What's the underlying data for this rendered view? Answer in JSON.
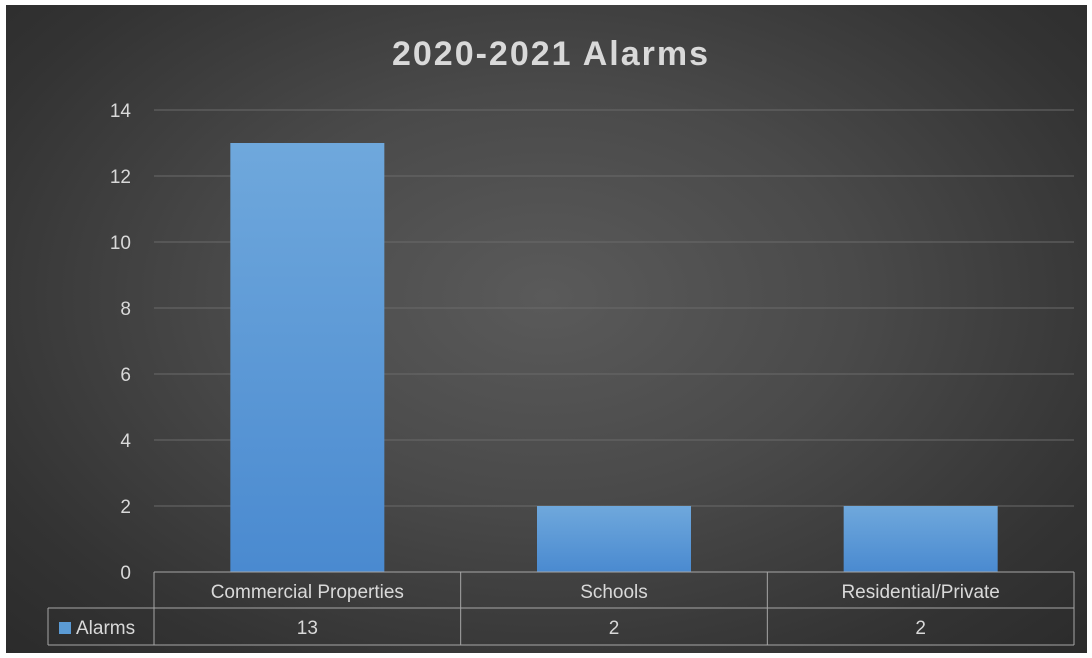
{
  "chart_data": {
    "type": "bar",
    "title": "2020-2021 Alarms",
    "categories": [
      "Commercial Properties",
      "Schools",
      "Residential/Private"
    ],
    "series": [
      {
        "name": "Alarms",
        "values": [
          13,
          2,
          2
        ]
      }
    ],
    "ylim": [
      0,
      14
    ],
    "yticks": [
      "0",
      "2",
      "4",
      "6",
      "8",
      "10",
      "12",
      "14"
    ],
    "grid": true,
    "data_table": {
      "rows": [
        {
          "label": "Alarms",
          "cells": [
            "13",
            "2",
            "2"
          ]
        }
      ]
    }
  },
  "colors": {
    "bar": "#5b9bd5",
    "text": "#d9d9d9",
    "grid": "#6a6a6a",
    "table_line": "#a6a6a6"
  }
}
